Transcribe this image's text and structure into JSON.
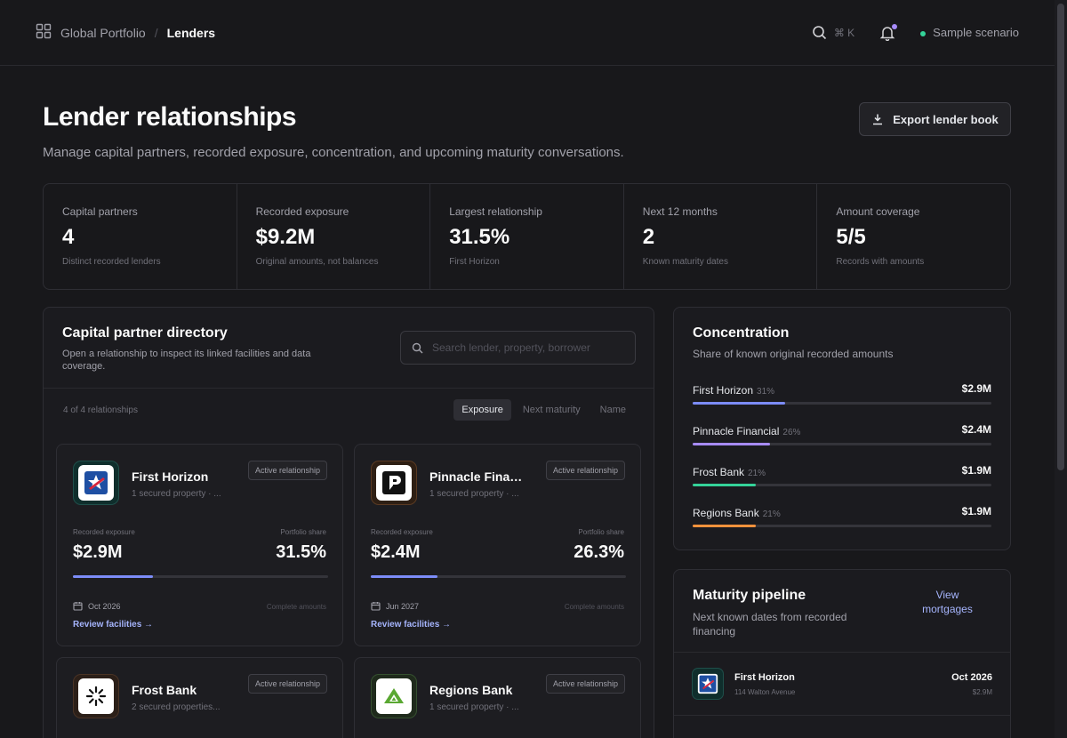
{
  "breadcrumb": {
    "parent": "Global Portfolio",
    "separator": "/",
    "current": "Lenders"
  },
  "topbar": {
    "search_shortcut": "⌘ K",
    "scenario_label": "Sample scenario"
  },
  "header": {
    "title": "Lender relationships",
    "subtitle": "Manage capital partners, recorded exposure, concentration, and upcoming maturity conversations.",
    "export_label": "Export lender book"
  },
  "stats": [
    {
      "label": "Capital partners",
      "value": "4",
      "note": "Distinct recorded lenders"
    },
    {
      "label": "Recorded exposure",
      "value": "$9.2M",
      "note": "Original amounts, not balances"
    },
    {
      "label": "Largest relationship",
      "value": "31.5%",
      "note": "First Horizon"
    },
    {
      "label": "Next 12 months",
      "value": "2",
      "note": "Known maturity dates"
    },
    {
      "label": "Amount coverage",
      "value": "5/5",
      "note": "Records with amounts"
    }
  ],
  "directory": {
    "title": "Capital partner directory",
    "subtitle": "Open a relationship to inspect its linked facilities and data coverage.",
    "search_placeholder": "Search lender, property, borrower",
    "count": "4 of 4 relationships",
    "sorts": [
      "Exposure",
      "Next maturity",
      "Name"
    ],
    "exposure_label": "Recorded exposure",
    "share_label": "Portfolio share",
    "cards": [
      {
        "name": "First Horizon",
        "sub": "1 secured property · ...",
        "badge": "Active relationship",
        "exposure": "$2.9M",
        "share": "31.5%",
        "share_fraction": 0.315,
        "bar_color": "#7c8cf8",
        "date": "Oct 2026",
        "complete": "Complete amounts",
        "link": "Review facilities →"
      },
      {
        "name": "Pinnacle Financial",
        "sub": "1 secured property · ...",
        "badge": "Active relationship",
        "exposure": "$2.4M",
        "share": "26.3%",
        "share_fraction": 0.263,
        "bar_color": "#7c8cf8",
        "date": "Jun 2027",
        "complete": "Complete amounts",
        "link": "Review facilities →"
      },
      {
        "name": "Frost Bank",
        "sub": "2 secured properties...",
        "badge": "Active relationship"
      },
      {
        "name": "Regions Bank",
        "sub": "1 secured property · ...",
        "badge": "Active relationship"
      }
    ]
  },
  "concentration": {
    "title": "Concentration",
    "subtitle": "Share of known original recorded amounts",
    "rows": [
      {
        "name": "First Horizon",
        "pct": "31%",
        "amount": "$2.9M",
        "fraction": 0.31,
        "color": "#7c8cf8"
      },
      {
        "name": "Pinnacle Financial",
        "pct": "26%",
        "amount": "$2.4M",
        "fraction": 0.26,
        "color": "#a78bfa"
      },
      {
        "name": "Frost Bank",
        "pct": "21%",
        "amount": "$1.9M",
        "fraction": 0.21,
        "color": "#34d399"
      },
      {
        "name": "Regions Bank",
        "pct": "21%",
        "amount": "$1.9M",
        "fraction": 0.21,
        "color": "#fb923c"
      }
    ]
  },
  "maturity": {
    "title": "Maturity pipeline",
    "subtitle": "Next known dates from recorded financing",
    "link": "View mortgages",
    "rows": [
      {
        "name": "First Horizon",
        "address": "114 Walton Avenue",
        "date": "Oct 2026",
        "amount": "$2.9M"
      }
    ]
  }
}
